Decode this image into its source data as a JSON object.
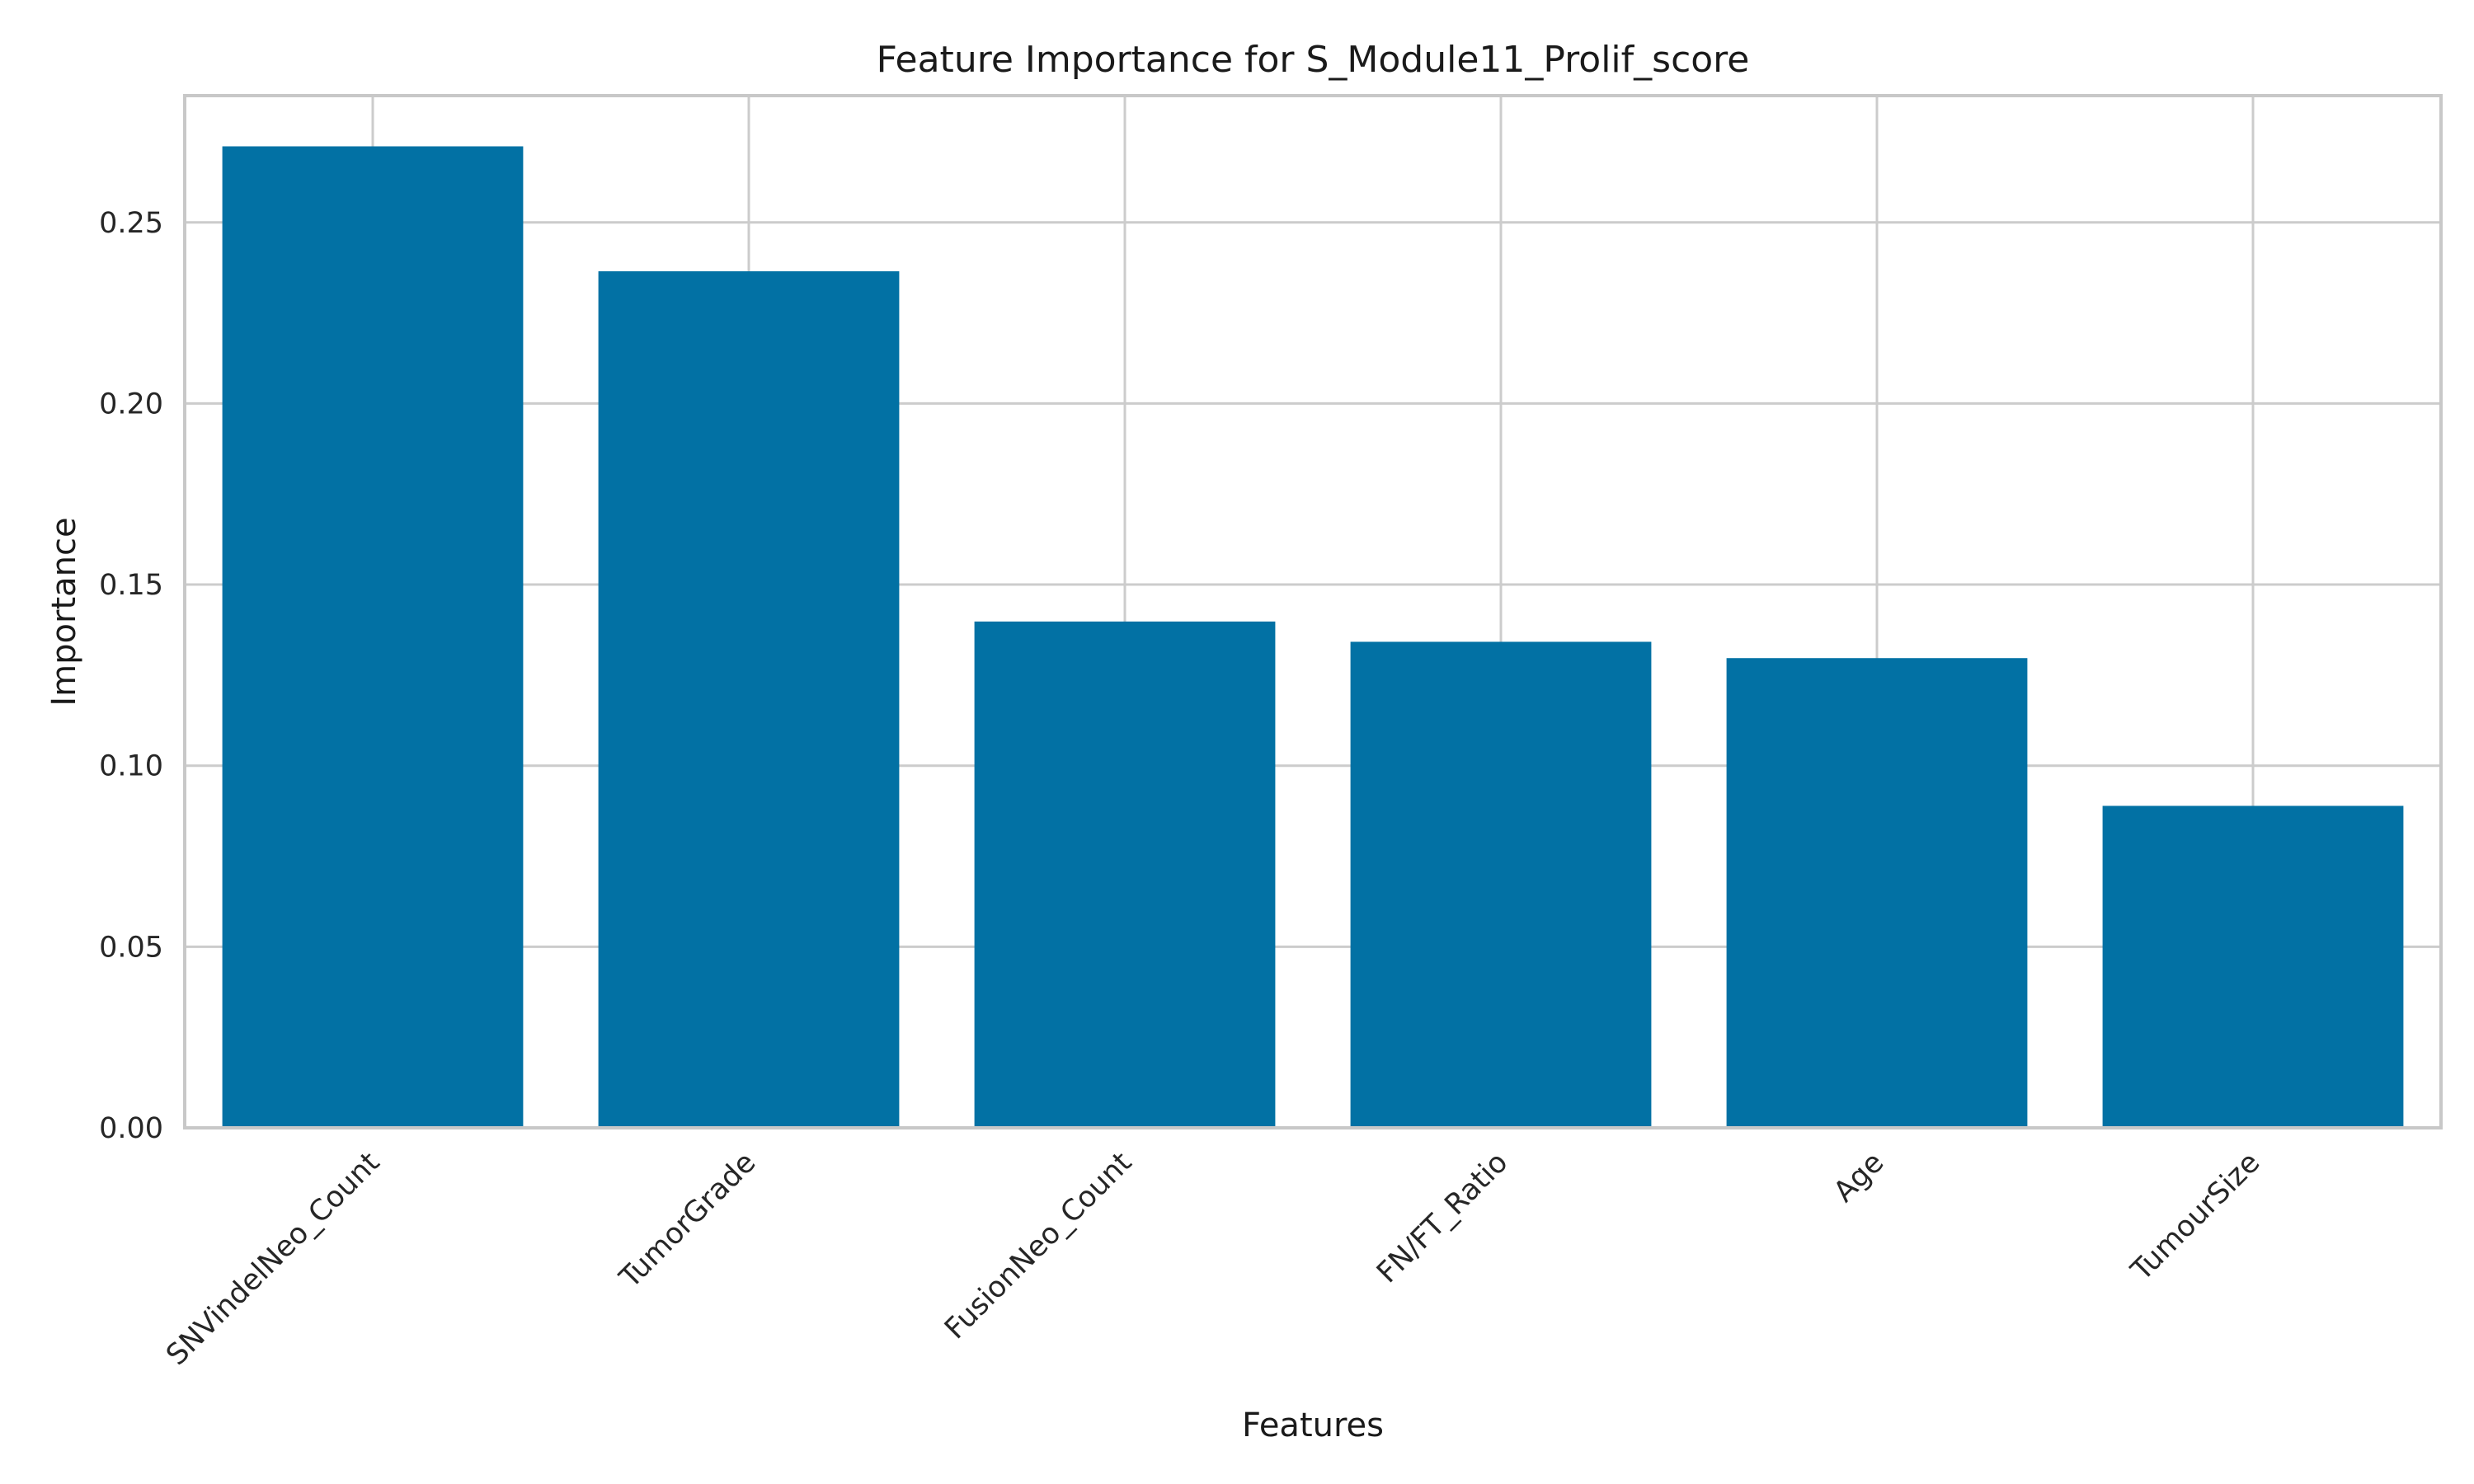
{
  "chart_data": {
    "type": "bar",
    "title": "Feature Importance for S_Module11_Prolif_score",
    "xlabel": "Features",
    "ylabel": "Importance",
    "categories": [
      "SNVindelNeo_Count",
      "TumorGrade",
      "FusionNeo_Count",
      "FN/FT_Ratio",
      "Age",
      "TumourSize"
    ],
    "values": [
      0.271,
      0.2365,
      0.1398,
      0.1342,
      0.1297,
      0.0889
    ],
    "ylim": [
      0,
      0.285
    ],
    "yticks": [
      0.0,
      0.05,
      0.1,
      0.15,
      0.2,
      0.25
    ],
    "ytick_labels": [
      "0.00",
      "0.05",
      "0.10",
      "0.15",
      "0.20",
      "0.25"
    ],
    "grid": true,
    "legend": "none",
    "bar_color": "#0271a4"
  }
}
